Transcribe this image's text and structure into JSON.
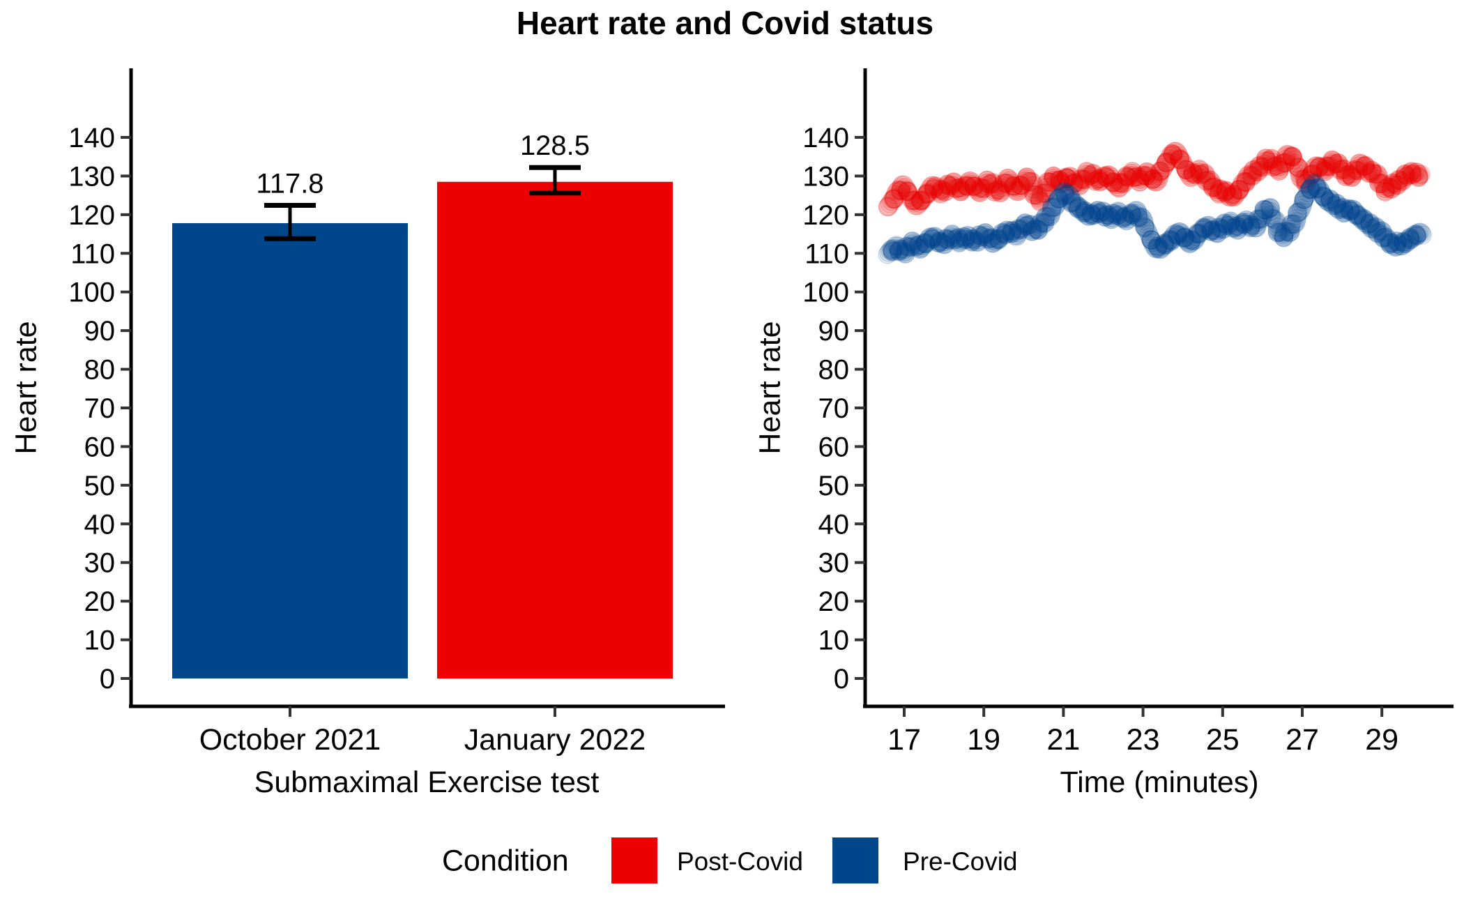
{
  "figure": {
    "title": "Heart rate and Covid status",
    "y_axis_label": "Heart rate"
  },
  "legend": {
    "title": "Condition",
    "items": [
      {
        "label": "Post-Covid",
        "color": "#ED0000"
      },
      {
        "label": "Pre-Covid",
        "color": "#00468B"
      }
    ]
  },
  "chart_data": [
    {
      "type": "bar",
      "panel": "left",
      "title": "",
      "ylabel": "Heart rate",
      "xlabel": "Submaximal Exercise test",
      "categories": [
        "October 2021",
        "January 2022"
      ],
      "values": [
        117.8,
        128.5
      ],
      "bar_labels": [
        "117.8",
        "128.5"
      ],
      "error_low": [
        113.8,
        125.6
      ],
      "error_high": [
        122.4,
        132.2
      ],
      "bar_colors": [
        "#00468B",
        "#ED0000"
      ],
      "series_names": [
        "Pre-Covid",
        "Post-Covid"
      ],
      "ylim": [
        0,
        140
      ],
      "yticks": [
        0,
        10,
        20,
        30,
        40,
        50,
        60,
        70,
        80,
        90,
        100,
        110,
        120,
        130,
        140
      ],
      "grid": false
    },
    {
      "type": "scatter",
      "panel": "right",
      "title": "",
      "ylabel": "Heart rate",
      "xlabel": "Time (minutes)",
      "xticks": [
        17,
        19,
        21,
        23,
        25,
        27,
        29
      ],
      "yticks": [
        0,
        10,
        20,
        30,
        40,
        50,
        60,
        70,
        80,
        90,
        100,
        110,
        120,
        130,
        140
      ],
      "xlim": [
        16.4,
        30.2
      ],
      "ylim": [
        0,
        140
      ],
      "grid": false,
      "point_alpha": "low (heavy overplotting)",
      "series": [
        {
          "name": "Post-Covid",
          "color": "#ED0000",
          "t_start": 16.6,
          "t_step": 0.1,
          "hr": [
            122.5,
            123.5,
            125,
            126.5,
            127.5,
            126,
            124,
            122.5,
            123,
            124.5,
            126,
            127.5,
            127,
            125.5,
            126,
            127.5,
            128.5,
            127.5,
            126,
            126.5,
            128,
            128.5,
            127,
            126,
            127,
            128.5,
            128,
            126.5,
            126,
            127.5,
            129,
            128,
            126.5,
            127,
            128.5,
            129.5,
            127.5,
            125,
            124,
            125.5,
            127.5,
            129,
            129.5,
            128.5,
            129,
            130,
            129,
            127.5,
            128,
            129.5,
            131,
            130.5,
            129,
            128.5,
            129.5,
            130.5,
            129.5,
            127.5,
            127,
            128.5,
            130,
            131,
            130,
            128.5,
            129.5,
            131,
            130,
            128.5,
            130,
            132,
            133.5,
            135.5,
            136.5,
            135,
            133,
            131,
            130,
            131,
            131.5,
            130.5,
            129,
            128,
            127,
            126,
            126.5,
            125.5,
            124.5,
            125,
            126.5,
            128,
            129,
            130,
            131,
            132,
            133,
            134.5,
            134,
            132.5,
            131.5,
            133,
            135,
            135.5,
            134,
            131.5,
            129.5,
            128.5,
            130,
            131.5,
            132.5,
            131.5,
            132,
            133.5,
            134,
            132.5,
            131.5,
            130.5,
            130,
            131,
            132,
            133,
            132,
            131,
            131.5,
            129.5,
            127.5,
            126,
            127,
            128,
            128.5,
            129,
            130,
            130.5,
            131,
            130.5,
            130
          ]
        },
        {
          "name": "Pre-Covid",
          "color": "#00468B",
          "t_start": 16.6,
          "t_step": 0.1,
          "hr": [
            110,
            110.5,
            111.5,
            111,
            110.5,
            111.5,
            112.5,
            112,
            111.5,
            112.5,
            113.5,
            114,
            113.5,
            112.5,
            113,
            114,
            114.5,
            113.5,
            113,
            114,
            114.5,
            113.5,
            113,
            114,
            115,
            114.5,
            113.5,
            113,
            114,
            115,
            115.5,
            116,
            115,
            116,
            117,
            117.5,
            116.5,
            116,
            117,
            118,
            119,
            121,
            123,
            124.5,
            125.5,
            125,
            123.5,
            122.5,
            122,
            121,
            120,
            119.5,
            120.5,
            121,
            120.5,
            119.5,
            119,
            120,
            120.5,
            119.5,
            119,
            120,
            120.5,
            119.5,
            118.5,
            116,
            113.5,
            111.5,
            111,
            112,
            113,
            113.5,
            114.5,
            115,
            114.5,
            113.5,
            113,
            114,
            115,
            116,
            117,
            116.5,
            115.5,
            116,
            116.5,
            117.5,
            118,
            117,
            116.5,
            117.5,
            118,
            117,
            117,
            118.5,
            120,
            121.5,
            121,
            118.5,
            116,
            114.5,
            115,
            116,
            118,
            120.5,
            123,
            125,
            126.5,
            127.5,
            127,
            125.5,
            124,
            123.5,
            122.5,
            122,
            121.5,
            121,
            121.5,
            120.5,
            119.5,
            119,
            118.5,
            117.5,
            116.5,
            115.5,
            115,
            114,
            113,
            112,
            112.5,
            112,
            113,
            114,
            114.5,
            115,
            114.5
          ]
        }
      ]
    }
  ]
}
